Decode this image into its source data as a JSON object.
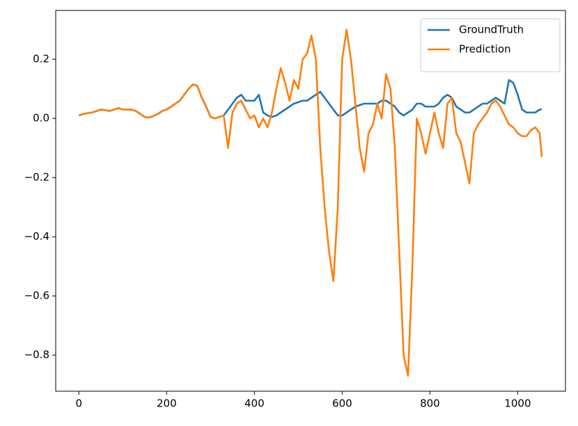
{
  "chart_data": {
    "type": "line",
    "x": [
      0,
      10,
      20,
      30,
      40,
      50,
      60,
      70,
      80,
      90,
      100,
      110,
      120,
      130,
      140,
      150,
      160,
      170,
      180,
      190,
      200,
      210,
      220,
      230,
      240,
      250,
      260,
      270,
      280,
      290,
      300,
      310,
      320,
      330,
      340,
      350,
      360,
      370,
      380,
      390,
      400,
      410,
      420,
      430,
      440,
      450,
      460,
      470,
      480,
      490,
      500,
      510,
      520,
      530,
      540,
      550,
      560,
      570,
      580,
      590,
      600,
      610,
      620,
      630,
      640,
      650,
      660,
      670,
      680,
      690,
      700,
      710,
      720,
      730,
      740,
      750,
      760,
      770,
      780,
      790,
      800,
      810,
      820,
      830,
      840,
      850,
      860,
      870,
      880,
      890,
      900,
      910,
      920,
      930,
      940,
      950,
      960,
      970,
      980,
      990,
      1000,
      1010,
      1020,
      1030,
      1040,
      1050,
      1055
    ],
    "series": [
      {
        "name": "GroundTruth",
        "color": "#1f77b4",
        "values": [
          0.01,
          0.015,
          0.018,
          0.02,
          0.025,
          0.03,
          0.028,
          0.025,
          0.03,
          0.035,
          0.03,
          0.03,
          0.03,
          0.025,
          0.015,
          0.005,
          0.003,
          0.008,
          0.015,
          0.025,
          0.03,
          0.04,
          0.05,
          0.06,
          0.08,
          0.1,
          0.115,
          0.11,
          0.07,
          0.04,
          0.005,
          0.0,
          0.005,
          0.01,
          0.03,
          0.05,
          0.07,
          0.08,
          0.06,
          0.06,
          0.06,
          0.08,
          0.02,
          0.01,
          0.005,
          0.01,
          0.02,
          0.03,
          0.04,
          0.05,
          0.055,
          0.06,
          0.06,
          0.07,
          0.08,
          0.09,
          0.07,
          0.05,
          0.03,
          0.01,
          0.01,
          0.02,
          0.03,
          0.04,
          0.045,
          0.05,
          0.05,
          0.05,
          0.05,
          0.06,
          0.06,
          0.05,
          0.04,
          0.02,
          0.01,
          0.02,
          0.03,
          0.05,
          0.05,
          0.04,
          0.04,
          0.04,
          0.05,
          0.07,
          0.08,
          0.07,
          0.04,
          0.03,
          0.02,
          0.02,
          0.03,
          0.04,
          0.05,
          0.05,
          0.06,
          0.07,
          0.06,
          0.05,
          0.13,
          0.12,
          0.08,
          0.03,
          0.02,
          0.02,
          0.02,
          0.03,
          0.03
        ]
      },
      {
        "name": "Prediction",
        "color": "#ff7f0e",
        "values": [
          0.01,
          0.015,
          0.018,
          0.02,
          0.025,
          0.03,
          0.028,
          0.025,
          0.03,
          0.035,
          0.03,
          0.03,
          0.03,
          0.025,
          0.015,
          0.005,
          0.003,
          0.008,
          0.015,
          0.025,
          0.03,
          0.04,
          0.05,
          0.06,
          0.08,
          0.1,
          0.115,
          0.11,
          0.07,
          0.04,
          0.005,
          0.0,
          0.005,
          0.01,
          -0.1,
          0.02,
          0.05,
          0.06,
          0.03,
          0.0,
          0.01,
          -0.03,
          0.0,
          -0.03,
          0.02,
          0.1,
          0.17,
          0.12,
          0.06,
          0.13,
          0.1,
          0.2,
          0.22,
          0.28,
          0.2,
          -0.1,
          -0.3,
          -0.45,
          -0.55,
          -0.3,
          0.2,
          0.3,
          0.2,
          0.05,
          -0.1,
          -0.18,
          -0.05,
          -0.02,
          0.05,
          0.0,
          0.15,
          0.1,
          -0.1,
          -0.45,
          -0.8,
          -0.87,
          -0.5,
          0.0,
          -0.05,
          -0.12,
          -0.05,
          0.02,
          -0.05,
          -0.1,
          0.05,
          0.07,
          -0.05,
          -0.08,
          -0.15,
          -0.22,
          -0.05,
          -0.02,
          0.0,
          0.02,
          0.05,
          0.06,
          0.04,
          0.01,
          -0.02,
          -0.03,
          -0.05,
          -0.06,
          -0.06,
          -0.04,
          -0.03,
          -0.05,
          -0.13
        ]
      }
    ],
    "xlim": [
      -52.8,
      1108.8
    ],
    "xticks": [
      0,
      200,
      400,
      600,
      800,
      1000
    ],
    "ylim": [
      -0.922,
      0.365
    ],
    "yticks": [
      {
        "value": -0.8,
        "label": "−0.8"
      },
      {
        "value": -0.6,
        "label": "−0.6"
      },
      {
        "value": -0.4,
        "label": "−0.4"
      },
      {
        "value": -0.2,
        "label": "−0.2"
      },
      {
        "value": 0.0,
        "label": "0.0"
      },
      0.2
    ],
    "legend": "upper right"
  }
}
